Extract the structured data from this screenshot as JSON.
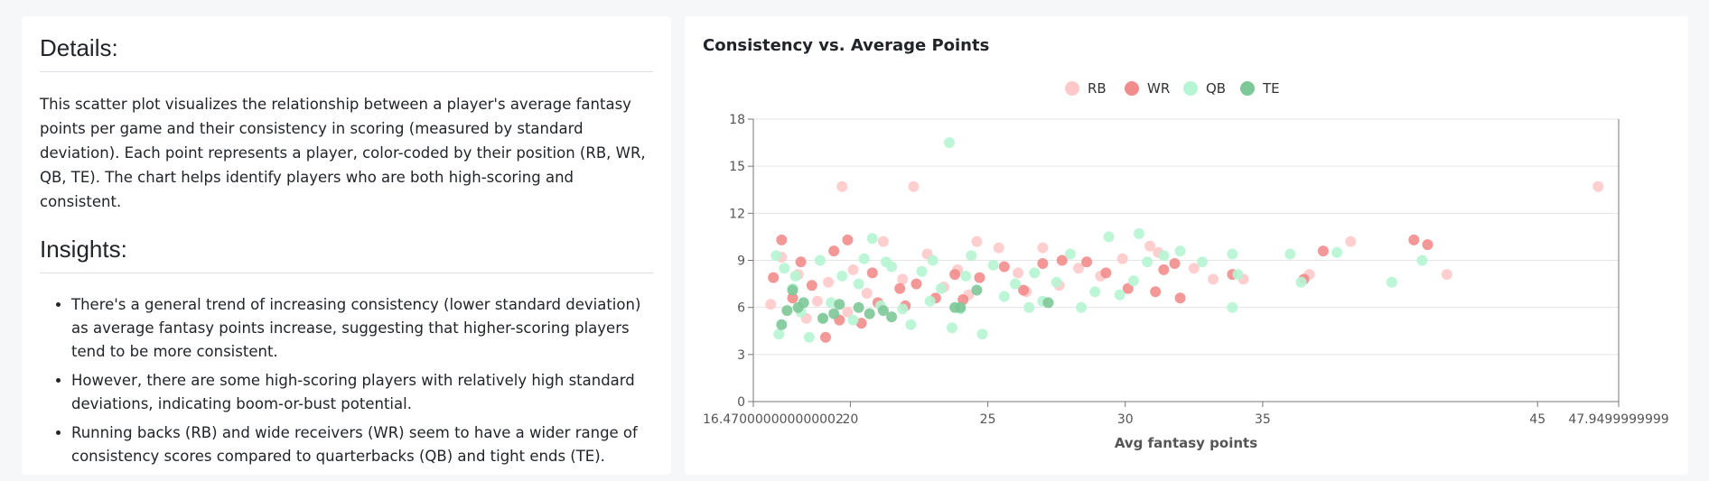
{
  "details": {
    "heading": "Details:",
    "description": "This scatter plot visualizes the relationship between a player's average fantasy points per game and their consistency in scoring (measured by standard deviation). Each point represents a player, color-coded by their position (RB, WR, QB, TE). The chart helps identify players who are both high-scoring and consistent."
  },
  "insights": {
    "heading": "Insights:",
    "items": [
      "There's a general trend of increasing consistency (lower standard deviation) as average fantasy points increase, suggesting that higher-scoring players tend to be more consistent.",
      "However, there are some high-scoring players with relatively high standard deviations, indicating boom-or-bust potential.",
      "Running backs (RB) and wide receivers (WR) seem to have a wider range of consistency scores compared to quarterbacks (QB) and tight ends (TE)."
    ]
  },
  "chart_data": {
    "type": "scatter",
    "title": "Consistency vs. Average Points",
    "xlabel": "Avg fantasy points",
    "ylabel": "",
    "xlim": [
      16.470000000000002,
      47.9499999999
    ],
    "ylim": [
      0,
      18
    ],
    "x_tick_labels": [
      "16.470000000000002",
      "20",
      "25",
      "30",
      "35",
      "45",
      "47.9499999999"
    ],
    "x_ticks": [
      16.47,
      20,
      25,
      30,
      35,
      45,
      47.95
    ],
    "y_ticks": [
      0,
      3,
      6,
      9,
      12,
      15,
      18
    ],
    "grid": "horizontal",
    "legend_position": "top-center",
    "series": [
      {
        "name": "RB",
        "color": "#ffc9c9",
        "points": [
          [
            19.7,
            13.7
          ],
          [
            22.3,
            13.7
          ],
          [
            47.2,
            13.7
          ],
          [
            17.5,
            9.2
          ],
          [
            18.1,
            8.1
          ],
          [
            19.2,
            7.6
          ],
          [
            20.1,
            8.4
          ],
          [
            21.2,
            10.2
          ],
          [
            22.8,
            9.4
          ],
          [
            23.4,
            7.3
          ],
          [
            24.6,
            10.2
          ],
          [
            25.4,
            9.8
          ],
          [
            26.1,
            8.2
          ],
          [
            27.0,
            9.8
          ],
          [
            27.6,
            7.4
          ],
          [
            28.3,
            8.5
          ],
          [
            29.1,
            8.0
          ],
          [
            29.9,
            9.1
          ],
          [
            30.9,
            9.9
          ],
          [
            31.2,
            9.5
          ],
          [
            32.5,
            8.5
          ],
          [
            33.2,
            7.8
          ],
          [
            34.3,
            7.8
          ],
          [
            36.7,
            8.1
          ],
          [
            38.2,
            10.2
          ],
          [
            41.7,
            8.1
          ],
          [
            18.8,
            6.4
          ],
          [
            20.6,
            6.9
          ],
          [
            21.9,
            7.8
          ],
          [
            23.9,
            8.4
          ],
          [
            24.3,
            6.8
          ],
          [
            26.4,
            7.0
          ],
          [
            17.1,
            6.2
          ],
          [
            18.4,
            5.3
          ],
          [
            19.9,
            5.7
          ]
        ]
      },
      {
        "name": "WR",
        "color": "#f28c8c",
        "points": [
          [
            17.5,
            10.3
          ],
          [
            19.9,
            10.3
          ],
          [
            40.5,
            10.3
          ],
          [
            41.0,
            10.0
          ],
          [
            19.4,
            9.6
          ],
          [
            37.2,
            9.6
          ],
          [
            17.2,
            7.9
          ],
          [
            17.9,
            6.6
          ],
          [
            18.6,
            7.4
          ],
          [
            19.1,
            4.1
          ],
          [
            19.6,
            5.2
          ],
          [
            20.4,
            5.0
          ],
          [
            21.0,
            6.3
          ],
          [
            21.8,
            7.2
          ],
          [
            22.4,
            7.5
          ],
          [
            23.1,
            6.6
          ],
          [
            23.8,
            8.1
          ],
          [
            24.7,
            7.9
          ],
          [
            25.6,
            8.6
          ],
          [
            26.3,
            7.1
          ],
          [
            27.0,
            8.8
          ],
          [
            27.7,
            9.0
          ],
          [
            28.6,
            8.9
          ],
          [
            29.3,
            8.2
          ],
          [
            30.1,
            7.2
          ],
          [
            31.1,
            7.0
          ],
          [
            31.4,
            8.4
          ],
          [
            31.8,
            8.8
          ],
          [
            32.0,
            6.6
          ],
          [
            33.9,
            8.1
          ],
          [
            36.5,
            7.8
          ],
          [
            18.2,
            8.9
          ],
          [
            20.8,
            8.2
          ],
          [
            22.0,
            6.1
          ],
          [
            24.1,
            6.5
          ]
        ]
      },
      {
        "name": "QB",
        "color": "#b6f5d3",
        "points": [
          [
            23.6,
            16.5
          ],
          [
            17.3,
            9.3
          ],
          [
            17.6,
            8.5
          ],
          [
            17.9,
            7.2
          ],
          [
            18.2,
            5.7
          ],
          [
            18.5,
            4.1
          ],
          [
            18.9,
            9.0
          ],
          [
            19.3,
            6.3
          ],
          [
            19.7,
            8.0
          ],
          [
            20.1,
            5.2
          ],
          [
            20.5,
            9.1
          ],
          [
            20.8,
            10.4
          ],
          [
            21.1,
            6.1
          ],
          [
            21.5,
            8.6
          ],
          [
            21.9,
            5.9
          ],
          [
            22.2,
            4.9
          ],
          [
            22.6,
            8.3
          ],
          [
            23.0,
            9.0
          ],
          [
            23.3,
            7.2
          ],
          [
            23.7,
            4.7
          ],
          [
            24.0,
            5.9
          ],
          [
            24.4,
            9.3
          ],
          [
            24.8,
            4.3
          ],
          [
            25.2,
            8.7
          ],
          [
            25.6,
            6.7
          ],
          [
            26.0,
            7.5
          ],
          [
            26.5,
            6.0
          ],
          [
            27.0,
            6.4
          ],
          [
            27.5,
            7.6
          ],
          [
            28.0,
            9.4
          ],
          [
            28.4,
            6.0
          ],
          [
            28.9,
            7.0
          ],
          [
            29.4,
            10.5
          ],
          [
            29.8,
            6.8
          ],
          [
            30.3,
            7.7
          ],
          [
            30.5,
            10.7
          ],
          [
            30.8,
            8.9
          ],
          [
            31.4,
            9.3
          ],
          [
            32.0,
            9.6
          ],
          [
            32.8,
            8.9
          ],
          [
            33.9,
            9.4
          ],
          [
            33.9,
            6.0
          ],
          [
            34.1,
            8.1
          ],
          [
            36.0,
            9.4
          ],
          [
            36.4,
            7.6
          ],
          [
            37.7,
            9.5
          ],
          [
            39.7,
            7.6
          ],
          [
            40.8,
            9.0
          ],
          [
            17.4,
            4.3
          ],
          [
            18.0,
            8.0
          ],
          [
            19.0,
            5.3
          ],
          [
            20.3,
            7.5
          ],
          [
            21.3,
            8.9
          ],
          [
            22.9,
            6.4
          ],
          [
            24.2,
            8.0
          ],
          [
            26.7,
            8.2
          ]
        ]
      },
      {
        "name": "TE",
        "color": "#7dc897",
        "points": [
          [
            17.5,
            4.9
          ],
          [
            17.9,
            7.1
          ],
          [
            17.7,
            5.8
          ],
          [
            18.1,
            6.0
          ],
          [
            18.3,
            6.3
          ],
          [
            19.0,
            5.3
          ],
          [
            19.4,
            5.6
          ],
          [
            19.6,
            6.2
          ],
          [
            20.3,
            6.0
          ],
          [
            20.7,
            5.6
          ],
          [
            21.2,
            5.8
          ],
          [
            21.5,
            5.4
          ],
          [
            23.8,
            6.0
          ],
          [
            24.0,
            6.0
          ],
          [
            24.6,
            7.1
          ],
          [
            27.2,
            6.3
          ]
        ]
      }
    ]
  }
}
